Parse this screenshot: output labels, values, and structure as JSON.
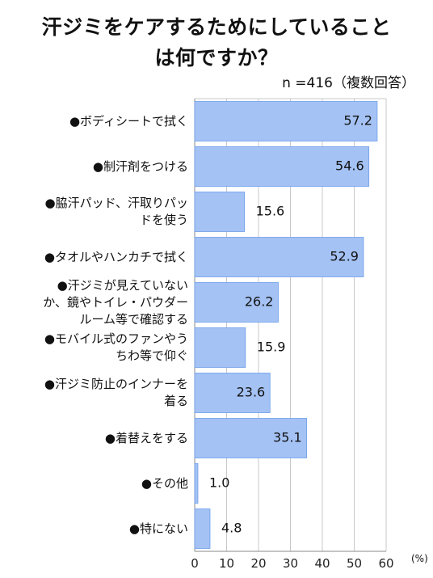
{
  "chart_data": {
    "type": "bar",
    "orientation": "horizontal",
    "title_lines": [
      "汗ジミをケアするためにしていること",
      "は何ですか？"
    ],
    "note": "n =416（複数回答）",
    "categories": [
      [
        "●ボディシートで拭く"
      ],
      [
        "●制汗剤をつける"
      ],
      [
        "●脇汗パッド、汗取りパッ",
        "ドを使う"
      ],
      [
        "●タオルやハンカチで拭く"
      ],
      [
        "●汗ジミが見えていない",
        "か、鏡やトイレ・パウダー",
        "ルーム等で確認する"
      ],
      [
        "●モバイル式のファンやう",
        "ちわ等で仰ぐ"
      ],
      [
        "●汗ジミ防止のインナーを",
        "着る"
      ],
      [
        "●着替えをする"
      ],
      [
        "●その他"
      ],
      [
        "●特にない"
      ]
    ],
    "values": [
      57.2,
      54.6,
      15.6,
      52.9,
      26.2,
      15.9,
      23.6,
      35.1,
      1.0,
      4.8
    ],
    "value_labels": [
      "57.2",
      "54.6",
      "15.6",
      "52.9",
      "26.2",
      "15.9",
      "23.6",
      "35.1",
      "1.0",
      "4.8"
    ],
    "xlim": [
      0,
      60
    ],
    "xticks": [
      "0",
      "10",
      "20",
      "30",
      "40",
      "50",
      "60"
    ],
    "xunit": "(%)",
    "grid": true,
    "bar_color": "#a4c2f4",
    "bar_edge_color": "#6d9eeb"
  }
}
